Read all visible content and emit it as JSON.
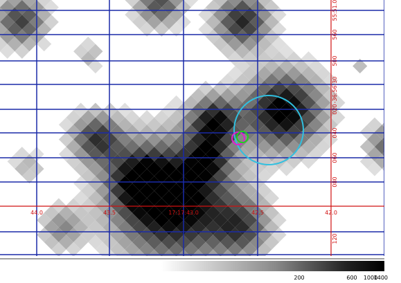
{
  "image": {
    "ra_labels": [
      "44.0",
      "43.5",
      "17:17:43.0",
      "42.5",
      "42.0"
    ],
    "dec_labels": [
      "55:51.0",
      "560",
      "500",
      "-36:56:30",
      "020",
      "040",
      "060",
      "080",
      "120"
    ],
    "colorbar": {
      "labels": [
        "200",
        "600",
        "1000",
        "1400"
      ]
    }
  }
}
